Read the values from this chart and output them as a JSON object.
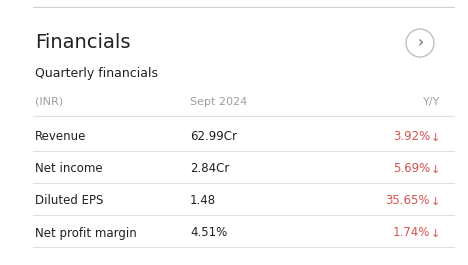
{
  "title": "Financials",
  "subtitle": "Quarterly financials",
  "bg_color": "#ffffff",
  "header_color": "#9e9e9e",
  "title_color": "#212121",
  "subtitle_color": "#212121",
  "row_label_color": "#212121",
  "value_color": "#212121",
  "yy_color": "#d9534f",
  "divider_color": "#e0e0e0",
  "top_border_color": "#d0d0d0",
  "col_inr": "(INR)",
  "col_sept": "Sept 2024",
  "col_yy": "Y/Y",
  "rows": [
    {
      "label": "Revenue",
      "value": "62.99Cr",
      "yy": "3.92%"
    },
    {
      "label": "Net income",
      "value": "2.84Cr",
      "yy": "5.69%"
    },
    {
      "label": "Diluted EPS",
      "value": "1.48",
      "yy": "35.65%"
    },
    {
      "label": "Net profit margin",
      "value": "4.51%",
      "yy": "1.74%"
    }
  ]
}
